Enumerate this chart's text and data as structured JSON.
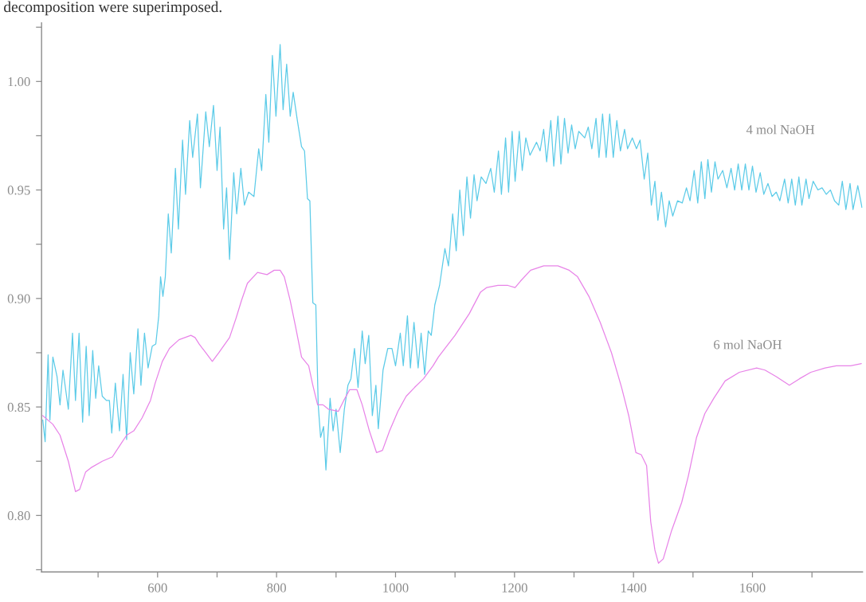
{
  "chart_data": {
    "type": "line",
    "annotations": [
      "decomposition were superimposed."
    ],
    "xlim": [
      405,
      1785
    ],
    "ylim": [
      0.774,
      1.027
    ],
    "xticks": [
      {
        "value": 500,
        "label": null
      },
      600,
      {
        "value": 700,
        "label": null
      },
      800,
      {
        "value": 900,
        "label": null
      },
      1000,
      {
        "value": 1100,
        "label": null
      },
      1200,
      {
        "value": 1300,
        "label": null
      },
      1400,
      {
        "value": 1500,
        "label": null
      },
      1600,
      {
        "value": 1700,
        "label": null
      }
    ],
    "yticks": [
      {
        "value": 0.775,
        "label": null
      },
      {
        "value": 0.8,
        "label": "0.80"
      },
      {
        "value": 0.825,
        "label": null
      },
      {
        "value": 0.85,
        "label": "0.85"
      },
      {
        "value": 0.875,
        "label": null
      },
      {
        "value": 0.9,
        "label": "0.90"
      },
      {
        "value": 0.925,
        "label": null
      },
      {
        "value": 0.95,
        "label": "0.95"
      },
      {
        "value": 0.975,
        "label": null
      },
      {
        "value": 1.0,
        "label": "1.00"
      },
      {
        "value": 1.025,
        "label": null
      }
    ],
    "grid": false,
    "legend": false,
    "marker": "none",
    "line_style": "solid",
    "series": [
      {
        "name": "4 mol NaOH",
        "color": "#5ccbe8",
        "x": [
          407,
          411,
          416,
          419,
          424,
          431,
          436,
          441,
          450,
          457,
          462,
          468,
          474,
          480,
          485,
          491,
          496,
          501,
          507,
          514,
          519,
          523,
          529,
          536,
          542,
          548,
          554,
          560,
          567,
          572,
          578,
          584,
          591,
          597,
          602,
          605,
          609,
          613,
          618,
          623,
          630,
          635,
          642,
          647,
          654,
          659,
          667,
          672,
          681,
          687,
          694,
          700,
          705,
          711,
          716,
          721,
          728,
          733,
          740,
          746,
          753,
          762,
          770,
          775,
          782,
          787,
          793,
          799,
          806,
          811,
          817,
          823,
          828,
          835,
          842,
          847,
          852,
          856,
          861,
          866,
          870,
          874,
          879,
          883,
          890,
          895,
          900,
          907,
          914,
          920,
          925,
          931,
          937,
          944,
          949,
          955,
          961,
          967,
          971,
          979,
          987,
          994,
          1000,
          1008,
          1013,
          1020,
          1025,
          1031,
          1038,
          1043,
          1049,
          1055,
          1060,
          1066,
          1074,
          1083,
          1089,
          1096,
          1102,
          1108,
          1114,
          1120,
          1126,
          1132,
          1137,
          1144,
          1152,
          1160,
          1166,
          1173,
          1178,
          1185,
          1190,
          1196,
          1201,
          1208,
          1213,
          1219,
          1226,
          1237,
          1243,
          1249,
          1254,
          1261,
          1266,
          1273,
          1278,
          1284,
          1290,
          1296,
          1302,
          1308,
          1318,
          1324,
          1330,
          1337,
          1342,
          1348,
          1354,
          1360,
          1366,
          1372,
          1378,
          1385,
          1390,
          1398,
          1405,
          1411,
          1418,
          1424,
          1430,
          1436,
          1441,
          1447,
          1454,
          1460,
          1466,
          1474,
          1482,
          1489,
          1495,
          1502,
          1508,
          1514,
          1520,
          1525,
          1531,
          1537,
          1542,
          1550,
          1557,
          1564,
          1570,
          1576,
          1582,
          1588,
          1594,
          1600,
          1606,
          1613,
          1619,
          1626,
          1633,
          1640,
          1646,
          1654,
          1660,
          1666,
          1672,
          1678,
          1683,
          1690,
          1695,
          1702,
          1710,
          1717,
          1724,
          1731,
          1738,
          1745,
          1751,
          1757,
          1764,
          1769,
          1777,
          1784
        ],
        "values": [
          0.844,
          0.834,
          0.874,
          0.844,
          0.873,
          0.864,
          0.851,
          0.867,
          0.849,
          0.884,
          0.853,
          0.884,
          0.843,
          0.878,
          0.846,
          0.876,
          0.854,
          0.869,
          0.855,
          0.853,
          0.853,
          0.838,
          0.861,
          0.839,
          0.865,
          0.835,
          0.875,
          0.856,
          0.886,
          0.86,
          0.884,
          0.868,
          0.878,
          0.879,
          0.892,
          0.91,
          0.901,
          0.91,
          0.939,
          0.921,
          0.96,
          0.932,
          0.973,
          0.948,
          0.982,
          0.965,
          0.985,
          0.951,
          0.986,
          0.97,
          0.989,
          0.959,
          0.979,
          0.932,
          0.951,
          0.918,
          0.958,
          0.939,
          0.96,
          0.943,
          0.949,
          0.947,
          0.969,
          0.959,
          0.994,
          0.972,
          1.012,
          0.984,
          1.017,
          0.987,
          1.008,
          0.984,
          0.995,
          0.982,
          0.97,
          0.968,
          0.946,
          0.945,
          0.898,
          0.897,
          0.851,
          0.836,
          0.841,
          0.821,
          0.854,
          0.839,
          0.849,
          0.829,
          0.849,
          0.86,
          0.863,
          0.877,
          0.859,
          0.885,
          0.87,
          0.883,
          0.846,
          0.86,
          0.84,
          0.867,
          0.877,
          0.877,
          0.869,
          0.884,
          0.869,
          0.892,
          0.868,
          0.889,
          0.868,
          0.884,
          0.865,
          0.885,
          0.883,
          0.897,
          0.906,
          0.923,
          0.915,
          0.939,
          0.922,
          0.95,
          0.929,
          0.956,
          0.937,
          0.957,
          0.945,
          0.956,
          0.953,
          0.96,
          0.949,
          0.968,
          0.948,
          0.974,
          0.949,
          0.977,
          0.954,
          0.977,
          0.959,
          0.974,
          0.966,
          0.972,
          0.968,
          0.978,
          0.963,
          0.982,
          0.961,
          0.984,
          0.962,
          0.983,
          0.967,
          0.98,
          0.969,
          0.977,
          0.974,
          0.979,
          0.969,
          0.983,
          0.965,
          0.985,
          0.965,
          0.985,
          0.965,
          0.982,
          0.968,
          0.978,
          0.969,
          0.974,
          0.969,
          0.973,
          0.955,
          0.967,
          0.943,
          0.954,
          0.936,
          0.949,
          0.933,
          0.945,
          0.938,
          0.945,
          0.944,
          0.951,
          0.945,
          0.959,
          0.944,
          0.963,
          0.946,
          0.964,
          0.949,
          0.963,
          0.955,
          0.959,
          0.951,
          0.96,
          0.95,
          0.962,
          0.95,
          0.962,
          0.95,
          0.961,
          0.949,
          0.958,
          0.948,
          0.953,
          0.947,
          0.949,
          0.945,
          0.955,
          0.944,
          0.955,
          0.943,
          0.956,
          0.943,
          0.955,
          0.946,
          0.954,
          0.95,
          0.951,
          0.948,
          0.95,
          0.945,
          0.943,
          0.954,
          0.941,
          0.953,
          0.941,
          0.952,
          0.942
        ]
      },
      {
        "name": "6 mol NaOH",
        "color": "#e884e8",
        "x": [
          407,
          424,
          436,
          450,
          462,
          469,
          479,
          488,
          507,
          524,
          536,
          548,
          560,
          574,
          588,
          596,
          608,
          620,
          636,
          656,
          663,
          670,
          681,
          692,
          703,
          721,
          732,
          741,
          751,
          768,
          784,
          796,
          806,
          813,
          823,
          832,
          842,
          854,
          861,
          869,
          878,
          887,
          904,
          913,
          923,
          935,
          944,
          956,
          968,
          978,
          990,
          1004,
          1018,
          1032,
          1047,
          1063,
          1072,
          1083,
          1100,
          1124,
          1143,
          1153,
          1172,
          1189,
          1201,
          1210,
          1227,
          1249,
          1273,
          1292,
          1306,
          1325,
          1344,
          1363,
          1380,
          1392,
          1404,
          1413,
          1422,
          1429,
          1436,
          1442,
          1450,
          1464,
          1481,
          1492,
          1506,
          1520,
          1535,
          1554,
          1578,
          1607,
          1621,
          1640,
          1662,
          1679,
          1698,
          1722,
          1741,
          1765,
          1783
        ],
        "values": [
          0.846,
          0.842,
          0.837,
          0.825,
          0.811,
          0.812,
          0.82,
          0.822,
          0.825,
          0.827,
          0.832,
          0.837,
          0.839,
          0.845,
          0.853,
          0.861,
          0.871,
          0.877,
          0.881,
          0.883,
          0.882,
          0.879,
          0.875,
          0.871,
          0.875,
          0.882,
          0.891,
          0.899,
          0.907,
          0.912,
          0.911,
          0.913,
          0.913,
          0.91,
          0.899,
          0.887,
          0.873,
          0.869,
          0.86,
          0.851,
          0.851,
          0.849,
          0.848,
          0.853,
          0.858,
          0.858,
          0.851,
          0.839,
          0.829,
          0.83,
          0.839,
          0.848,
          0.855,
          0.859,
          0.863,
          0.869,
          0.873,
          0.877,
          0.883,
          0.893,
          0.903,
          0.905,
          0.906,
          0.906,
          0.905,
          0.908,
          0.913,
          0.915,
          0.915,
          0.913,
          0.91,
          0.901,
          0.889,
          0.875,
          0.859,
          0.846,
          0.829,
          0.828,
          0.823,
          0.797,
          0.784,
          0.778,
          0.78,
          0.793,
          0.806,
          0.818,
          0.836,
          0.847,
          0.854,
          0.862,
          0.866,
          0.868,
          0.867,
          0.864,
          0.86,
          0.863,
          0.866,
          0.868,
          0.869,
          0.869,
          0.87
        ]
      }
    ]
  }
}
